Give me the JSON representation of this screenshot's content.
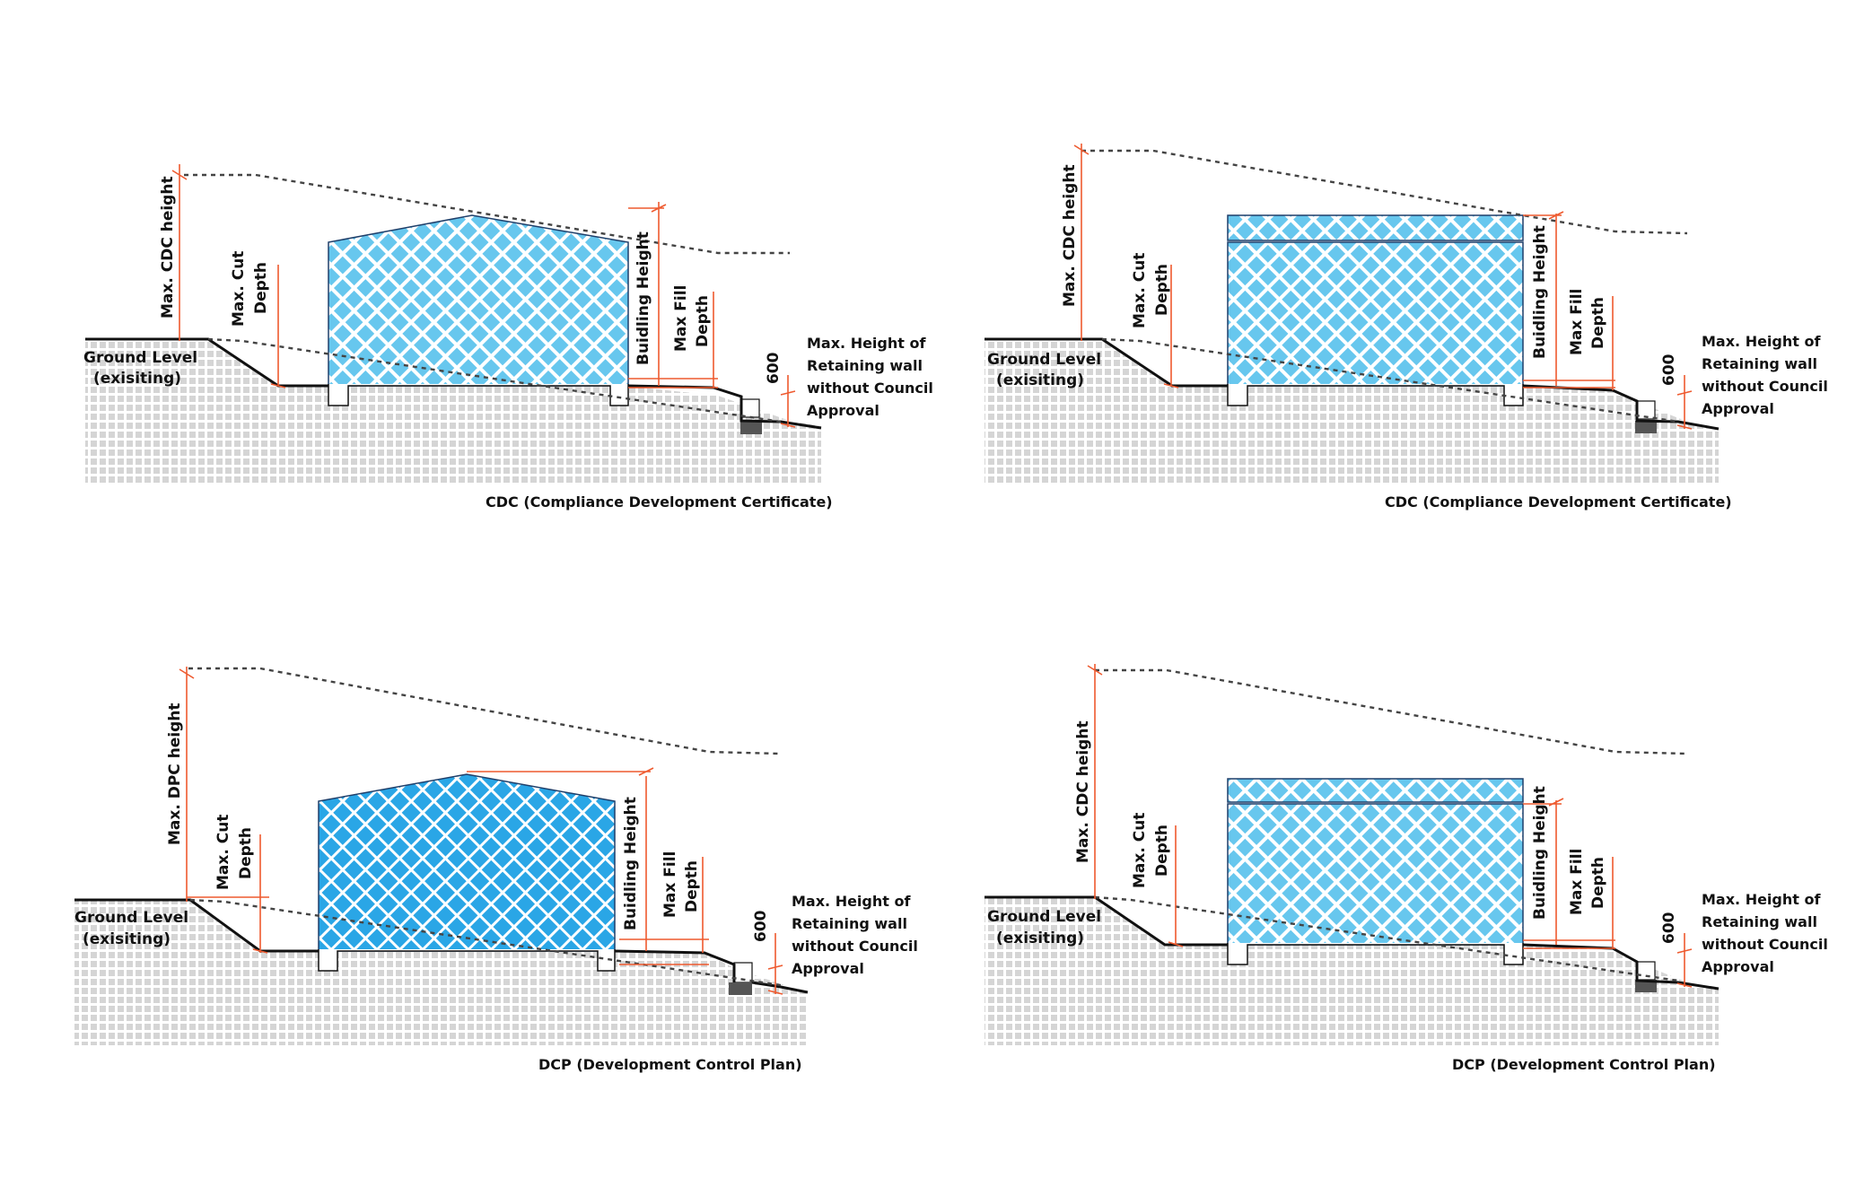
{
  "colors": {
    "accent_red": "#ee5a2f",
    "building_fill": "#67c7ee",
    "building_fill_dark": "#2aa6e6",
    "ground": "#111111",
    "soil_grid": "#d5d5d5"
  },
  "panels": [
    {
      "id": "top-left",
      "roof": "gable",
      "max_height_label": "Max. CDC height",
      "cut_label_1": "Max. Cut",
      "cut_label_2": "Depth",
      "building_height_label": "Buidling Height",
      "fill_label_1": "Max Fill",
      "fill_label_2": "Depth",
      "wall_height_value": "600",
      "retaining_label_lines": [
        "Max. Height of",
        "Retaining wall",
        "without Council",
        "Approval"
      ],
      "ground_label_1": "Ground Level",
      "ground_label_2": "(exisiting)",
      "caption": "CDC (Compliance Development Certificate)"
    },
    {
      "id": "top-right",
      "roof": "flat",
      "max_height_label": "Max. CDC height",
      "cut_label_1": "Max. Cut",
      "cut_label_2": "Depth",
      "building_height_label": "Buidling Height",
      "fill_label_1": "Max Fill",
      "fill_label_2": "Depth",
      "wall_height_value": "600",
      "retaining_label_lines": [
        "Max. Height of",
        "Retaining wall",
        "without Council",
        "Approval"
      ],
      "ground_label_1": "Ground Level",
      "ground_label_2": "(exisiting)",
      "caption": "CDC (Compliance Development Certificate)"
    },
    {
      "id": "bottom-left",
      "roof": "gable",
      "max_height_label": "Max. DPC height",
      "cut_label_1": "Max. Cut",
      "cut_label_2": "Depth",
      "building_height_label": "Buidling Height",
      "fill_label_1": "Max Fill",
      "fill_label_2": "Depth",
      "wall_height_value": "600",
      "retaining_label_lines": [
        "Max. Height of",
        "Retaining wall",
        "without Council",
        "Approval"
      ],
      "ground_label_1": "Ground Level",
      "ground_label_2": "(exisiting)",
      "caption": "DCP (Development Control Plan)"
    },
    {
      "id": "bottom-right",
      "roof": "flat",
      "max_height_label": "Max. CDC height",
      "cut_label_1": "Max. Cut",
      "cut_label_2": "Depth",
      "building_height_label": "Buidling Height",
      "fill_label_1": "Max Fill",
      "fill_label_2": "Depth",
      "wall_height_value": "600",
      "retaining_label_lines": [
        "Max. Height of",
        "Retaining wall",
        "without Council",
        "Approval"
      ],
      "ground_label_1": "Ground Level",
      "ground_label_2": "(exisiting)",
      "caption": "DCP (Development Control Plan)"
    }
  ]
}
